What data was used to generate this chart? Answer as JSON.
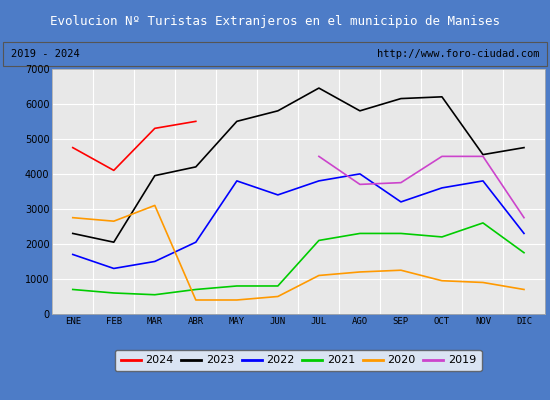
{
  "title": "Evolucion Nº Turistas Extranjeros en el municipio de Manises",
  "subtitle_left": "2019 - 2024",
  "subtitle_right": "http://www.foro-ciudad.com",
  "title_bg_color": "#4d7cc7",
  "title_text_color": "#ffffff",
  "subtitle_bg_color": "#d9d9d9",
  "plot_bg_color": "#e8e8e8",
  "outer_bg_color": "#4d7cc7",
  "months": [
    "ENE",
    "FEB",
    "MAR",
    "ABR",
    "MAY",
    "JUN",
    "JUL",
    "AGO",
    "SEP",
    "OCT",
    "NOV",
    "DIC"
  ],
  "ylim": [
    0,
    7000
  ],
  "yticks": [
    0,
    1000,
    2000,
    3000,
    4000,
    5000,
    6000,
    7000
  ],
  "series": {
    "2024": {
      "color": "#ff0000",
      "data": [
        4750,
        4100,
        5300,
        5500,
        null,
        null,
        null,
        null,
        null,
        null,
        null,
        null
      ]
    },
    "2023": {
      "color": "#000000",
      "data": [
        2300,
        2050,
        3950,
        4200,
        5500,
        5800,
        6450,
        5800,
        6150,
        6200,
        4550,
        4750
      ]
    },
    "2022": {
      "color": "#0000ff",
      "data": [
        1700,
        1300,
        1500,
        2050,
        3800,
        3400,
        3800,
        4000,
        3200,
        3600,
        3800,
        2300
      ]
    },
    "2021": {
      "color": "#00cc00",
      "data": [
        700,
        600,
        550,
        700,
        800,
        800,
        2100,
        2300,
        2300,
        2200,
        2600,
        1750
      ]
    },
    "2020": {
      "color": "#ff9900",
      "data": [
        2750,
        2650,
        3100,
        400,
        400,
        500,
        1100,
        1200,
        1250,
        950,
        900,
        700
      ]
    },
    "2019": {
      "color": "#cc44cc",
      "data": [
        null,
        null,
        null,
        null,
        null,
        null,
        4500,
        3700,
        3750,
        4500,
        4500,
        2750
      ]
    }
  },
  "year_order": [
    "2024",
    "2023",
    "2022",
    "2021",
    "2020",
    "2019"
  ]
}
